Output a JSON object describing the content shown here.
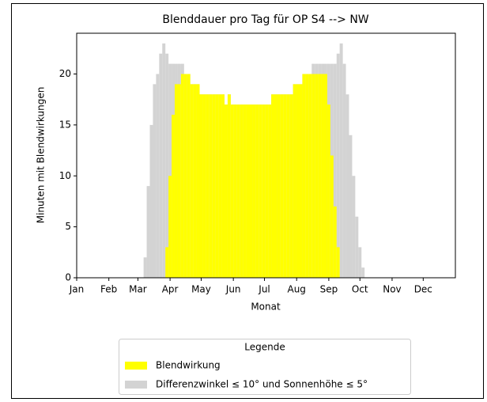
{
  "chart_data": {
    "type": "bar",
    "title": "Blenddauer pro Tag für OP S4 --> NW",
    "x_label": "Monat",
    "y_label": "Minuten mit Blendwirkungen",
    "legend_title": "Legende",
    "legend": "lower center",
    "x": [
      63,
      66,
      69,
      72,
      75,
      78,
      81,
      84,
      87,
      90,
      93,
      96,
      99,
      102,
      105,
      108,
      111,
      114,
      117,
      120,
      123,
      126,
      129,
      132,
      135,
      138,
      141,
      144,
      147,
      150,
      153,
      156,
      159,
      162,
      165,
      168,
      171,
      174,
      177,
      180,
      183,
      186,
      189,
      192,
      195,
      198,
      201,
      204,
      207,
      210,
      213,
      216,
      219,
      222,
      225,
      228,
      231,
      234,
      237,
      240,
      243,
      246,
      249,
      252,
      255,
      258,
      261,
      264,
      267,
      270,
      273,
      276,
      279
    ],
    "series": [
      {
        "name": "Blendwirkung",
        "color": "#ffff00",
        "values": [
          0,
          0,
          0,
          0,
          0,
          0,
          0,
          0,
          3,
          10,
          16,
          19,
          19,
          20,
          20,
          20,
          19,
          19,
          19,
          18,
          18,
          18,
          18,
          18,
          18,
          18,
          18,
          17,
          18,
          17,
          17,
          17,
          17,
          17,
          17,
          17,
          17,
          17,
          17,
          17,
          17,
          17,
          18,
          18,
          18,
          18,
          18,
          18,
          18,
          19,
          19,
          19,
          20,
          20,
          20,
          20,
          20,
          20,
          20,
          20,
          17,
          12,
          7,
          3,
          0,
          0,
          0,
          0,
          0,
          0,
          0,
          0,
          0
        ]
      },
      {
        "name": "Differenzwinkel ≤ 10° und Sonnenhöhe ≤ 5°",
        "color": "#d3d3d3",
        "values": [
          0,
          2,
          9,
          15,
          19,
          20,
          22,
          23,
          22,
          21,
          21,
          21,
          21,
          21,
          20,
          20,
          19,
          19,
          19,
          18,
          18,
          18,
          18,
          18,
          18,
          18,
          18,
          17,
          18,
          17,
          17,
          17,
          17,
          17,
          17,
          17,
          17,
          17,
          17,
          17,
          17,
          17,
          18,
          18,
          18,
          18,
          18,
          18,
          18,
          19,
          19,
          19,
          20,
          20,
          20,
          21,
          21,
          21,
          21,
          21,
          21,
          21,
          21,
          22,
          23,
          21,
          18,
          14,
          10,
          6,
          3,
          1,
          0
        ]
      }
    ],
    "xlim": [
      0,
      365
    ],
    "xticks": [
      {
        "value": 0,
        "label": "Jan"
      },
      {
        "value": 31,
        "label": "Feb"
      },
      {
        "value": 59,
        "label": "Mar"
      },
      {
        "value": 90,
        "label": "Apr"
      },
      {
        "value": 120,
        "label": "May"
      },
      {
        "value": 151,
        "label": "Jun"
      },
      {
        "value": 181,
        "label": "Jul"
      },
      {
        "value": 212,
        "label": "Aug"
      },
      {
        "value": 243,
        "label": "Sep"
      },
      {
        "value": 273,
        "label": "Oct"
      },
      {
        "value": 304,
        "label": "Nov"
      },
      {
        "value": 334,
        "label": "Dec"
      }
    ],
    "ylim": [
      0,
      24
    ],
    "yticks": [
      0,
      5,
      10,
      15,
      20
    ],
    "bar_width_days": 3
  }
}
